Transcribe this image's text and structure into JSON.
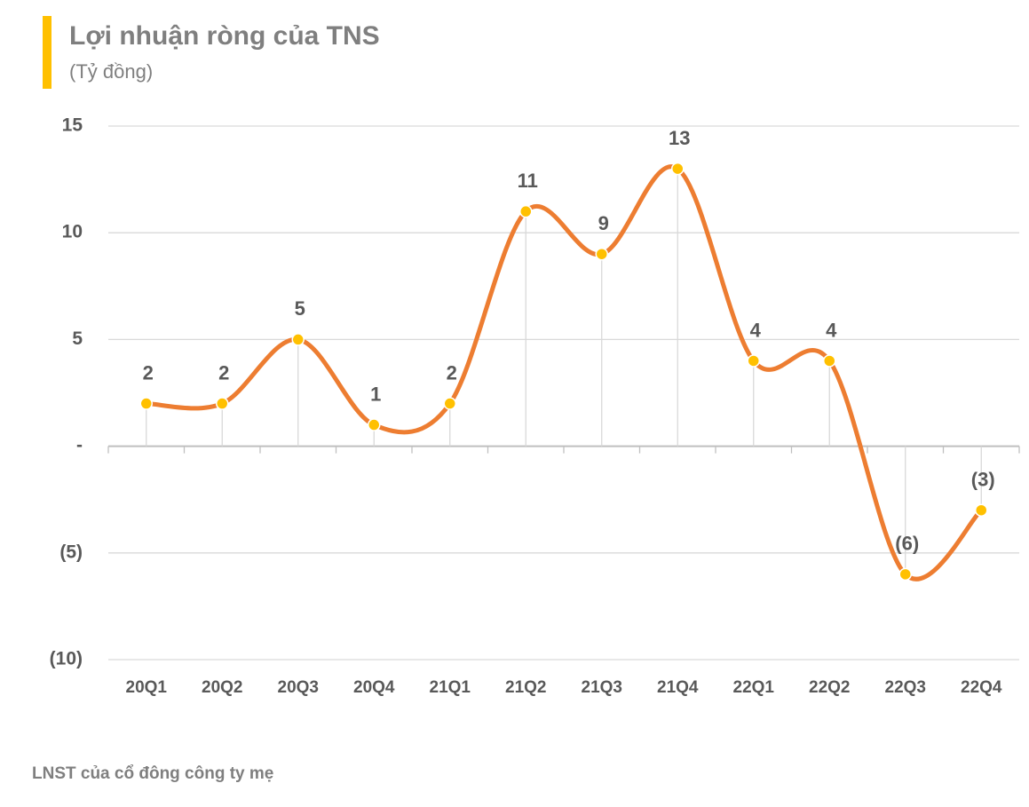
{
  "chart_data": {
    "type": "line",
    "title": "Lợi nhuận ròng của TNS",
    "subtitle": "(Tỷ đồng)",
    "categories": [
      "20Q1",
      "20Q2",
      "20Q3",
      "20Q4",
      "21Q1",
      "21Q2",
      "21Q3",
      "21Q4",
      "22Q1",
      "22Q2",
      "22Q3",
      "22Q4"
    ],
    "series": [
      {
        "name": "LNST của cổ đông công ty mẹ",
        "color": "#ED7D31",
        "marker_color": "#FFC000",
        "values": [
          2,
          2,
          5,
          1,
          2,
          11,
          9,
          13,
          4,
          4,
          -6,
          -3
        ],
        "value_labels": [
          "2",
          "2",
          "5",
          "1",
          "2",
          "11",
          "9",
          "13",
          "4",
          "4",
          "(6)",
          "(3)"
        ]
      }
    ],
    "ylim": [
      -10,
      15
    ],
    "yticks": [
      15,
      10,
      5,
      {
        "value": 0,
        "label": "-"
      },
      {
        "value": -5,
        "label": "(5)"
      },
      {
        "value": -10,
        "label": "(10)"
      }
    ],
    "grid": true,
    "smooth": true
  }
}
